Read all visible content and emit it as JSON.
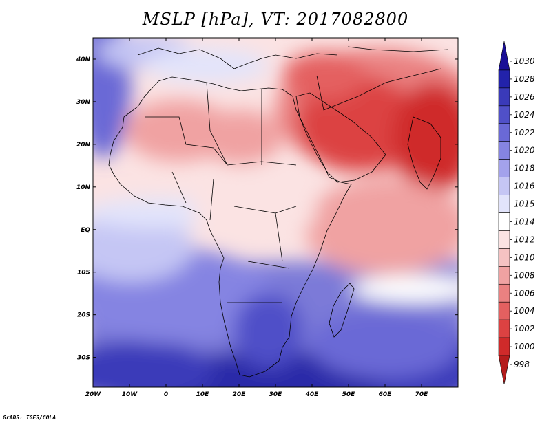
{
  "title": "MSLP [hPa], VT: 2017082800",
  "credit": "GrADS: IGES/COLA",
  "map": {
    "type": "filled-contour",
    "variable": "MSLP",
    "units": "hPa",
    "valid_time": "2017082800",
    "lon_range": [
      -20,
      80
    ],
    "lat_range": [
      -37,
      45
    ],
    "lat_ticks": [
      {
        "value": 40,
        "label": "40N"
      },
      {
        "value": 30,
        "label": "30N"
      },
      {
        "value": 20,
        "label": "20N"
      },
      {
        "value": 10,
        "label": "10N"
      },
      {
        "value": 0,
        "label": "EQ"
      },
      {
        "value": -10,
        "label": "10S"
      },
      {
        "value": -20,
        "label": "20S"
      },
      {
        "value": -30,
        "label": "30S"
      }
    ],
    "lon_ticks": [
      {
        "value": -20,
        "label": "20W"
      },
      {
        "value": -10,
        "label": "10W"
      },
      {
        "value": 0,
        "label": "0"
      },
      {
        "value": 10,
        "label": "10E"
      },
      {
        "value": 20,
        "label": "20E"
      },
      {
        "value": 30,
        "label": "30E"
      },
      {
        "value": 40,
        "label": "40E"
      },
      {
        "value": 50,
        "label": "50E"
      },
      {
        "value": 60,
        "label": "60E"
      },
      {
        "value": 70,
        "label": "70E"
      }
    ]
  },
  "colorbar": {
    "levels": [
      "1030",
      "1028",
      "1026",
      "1024",
      "1022",
      "1020",
      "1018",
      "1016",
      "1015",
      "1014",
      "1012",
      "1010",
      "1008",
      "1006",
      "1004",
      "1002",
      "1000",
      "998"
    ],
    "colors": [
      "#1a0f96",
      "#2222aa",
      "#3a3ab9",
      "#5050c8",
      "#6a69d6",
      "#8584e2",
      "#a3a2ec",
      "#c5c6f4",
      "#e2e4fb",
      "#ffffff",
      "#fbe3e3",
      "#f5c2c2",
      "#f0a2a2",
      "#ea8181",
      "#e46060",
      "#dc4242",
      "#cf2a2a",
      "#b41c1c"
    ]
  }
}
